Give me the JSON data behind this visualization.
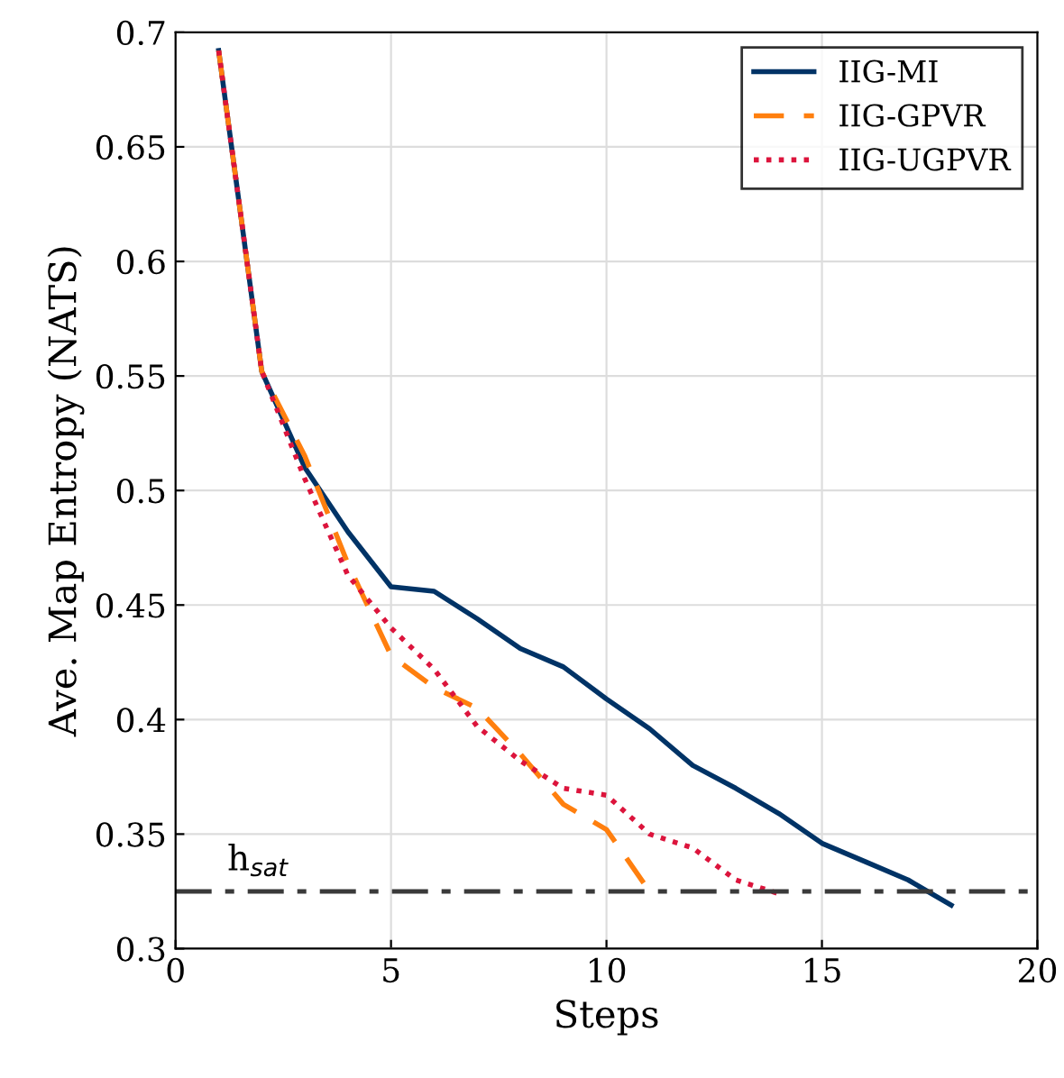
{
  "chart_data": {
    "type": "line",
    "xlabel": "Steps",
    "ylabel": "Ave. Map Entropy (NATS)",
    "xlim": [
      0,
      20
    ],
    "ylim": [
      0.3,
      0.7
    ],
    "xticks": [
      0,
      5,
      10,
      15,
      20
    ],
    "yticks": [
      0.3,
      0.35,
      0.4,
      0.45,
      0.5,
      0.55,
      0.6,
      0.65,
      0.7
    ],
    "grid": true,
    "legend": "top right",
    "series": [
      {
        "name": "IIG-MI",
        "color": "#003366",
        "line_style": "solid",
        "x": [
          1,
          2,
          3,
          4,
          5,
          6,
          7,
          8,
          9,
          10,
          11,
          12,
          13,
          14,
          15,
          16,
          17,
          18
        ],
        "values": [
          0.692,
          0.552,
          0.51,
          0.482,
          0.458,
          0.456,
          0.444,
          0.431,
          0.423,
          0.409,
          0.396,
          0.38,
          0.37,
          0.359,
          0.346,
          0.338,
          0.33,
          0.319
        ]
      },
      {
        "name": "IIG-GPVR",
        "color": "#ff7f0e",
        "line_style": "dashed",
        "x": [
          1,
          2,
          3,
          4,
          5,
          6,
          7,
          8,
          9,
          10,
          11
        ],
        "values": [
          0.692,
          0.552,
          0.515,
          0.468,
          0.428,
          0.414,
          0.405,
          0.385,
          0.363,
          0.352,
          0.325
        ]
      },
      {
        "name": "IIG-UGPVR",
        "color": "#dc143c",
        "line_style": "dotted",
        "x": [
          1,
          2,
          3,
          4,
          5,
          6,
          7,
          8,
          9,
          10,
          11,
          12,
          13,
          14
        ],
        "values": [
          0.692,
          0.552,
          0.505,
          0.463,
          0.44,
          0.422,
          0.397,
          0.382,
          0.37,
          0.367,
          0.35,
          0.344,
          0.33,
          0.324
        ]
      }
    ],
    "ref_lines": [
      {
        "axis": "y",
        "value": 0.325,
        "label": "h$_{sat}$",
        "color": "#3a3a3a",
        "line_style": "dashdot"
      }
    ]
  }
}
